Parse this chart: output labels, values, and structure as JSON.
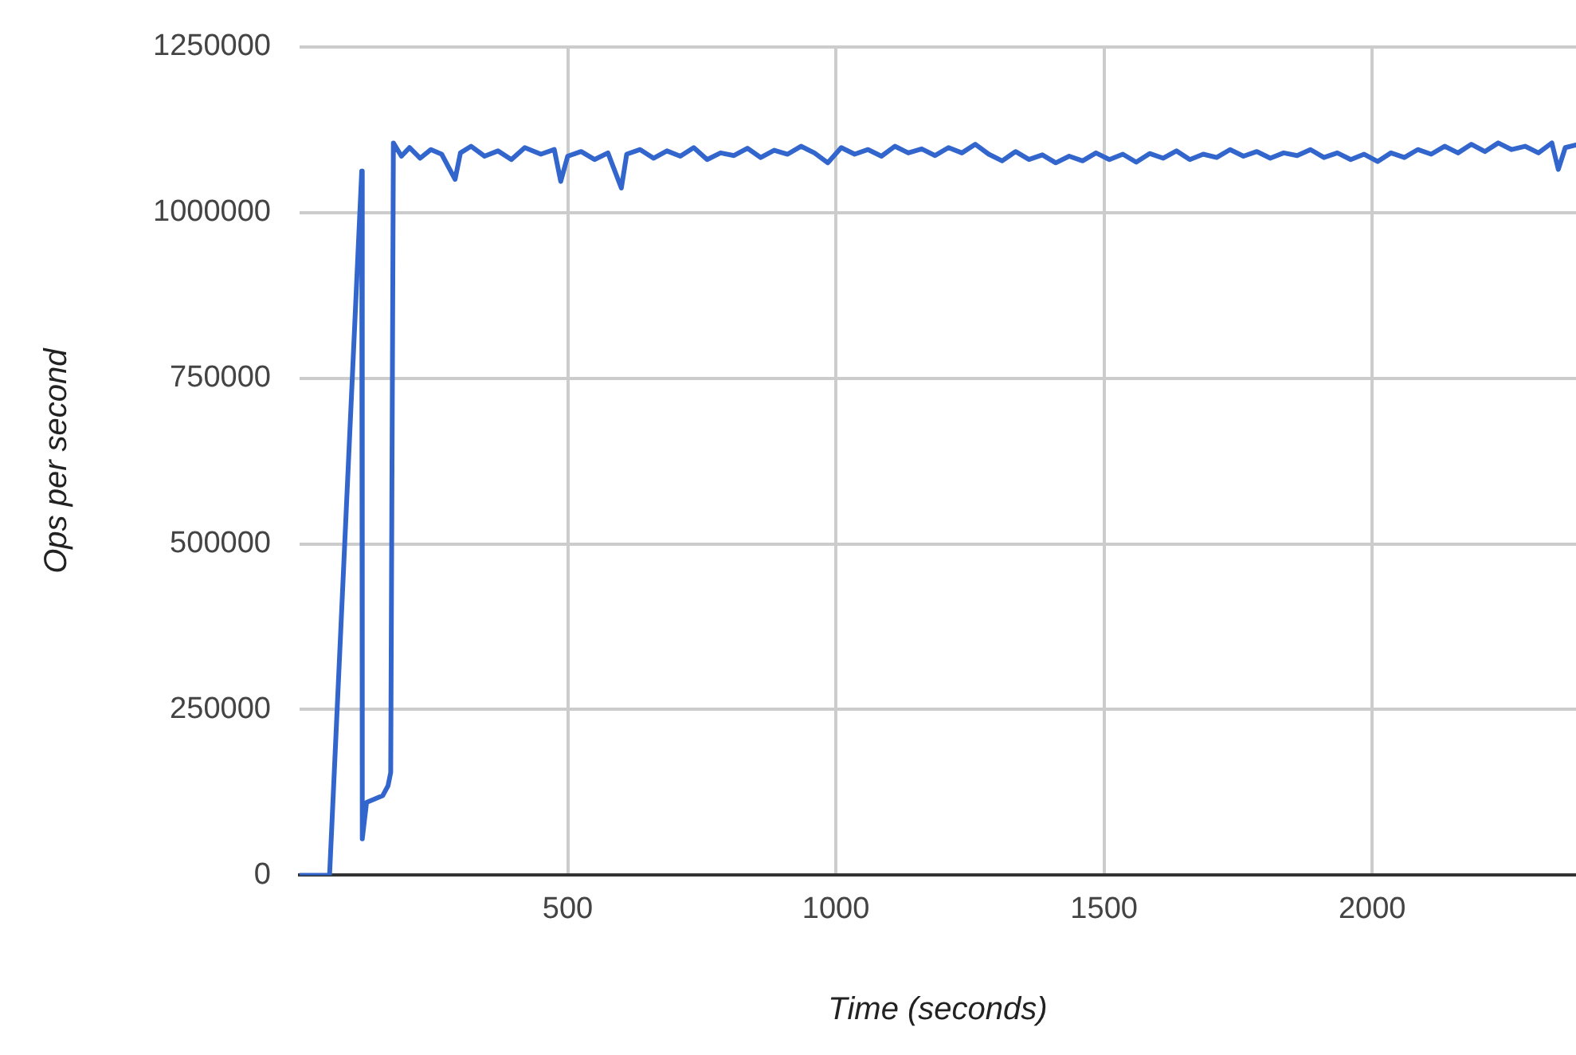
{
  "chart_data": {
    "type": "line",
    "xlabel": "Time (seconds)",
    "ylabel": "Ops per second",
    "xlim": [
      0,
      2380
    ],
    "xticks": [
      500,
      1000,
      1500,
      2000
    ],
    "ylim": [
      0,
      1250000
    ],
    "yticks": [
      0,
      250000,
      500000,
      750000,
      1000000,
      1250000
    ],
    "grid": true,
    "legend": false,
    "marker": "none",
    "line_style": "solid",
    "series": [
      {
        "color": "#3366cc",
        "x": [
          0,
          56,
          116,
          117,
          125,
          140,
          155,
          165,
          170,
          175,
          190,
          205,
          225,
          245,
          265,
          290,
          300,
          320,
          345,
          370,
          395,
          420,
          450,
          475,
          487,
          500,
          525,
          550,
          575,
          600,
          610,
          635,
          660,
          685,
          710,
          735,
          760,
          785,
          810,
          835,
          860,
          885,
          910,
          935,
          960,
          985,
          1010,
          1035,
          1060,
          1085,
          1110,
          1135,
          1160,
          1185,
          1210,
          1235,
          1260,
          1285,
          1310,
          1335,
          1360,
          1385,
          1410,
          1435,
          1460,
          1485,
          1510,
          1535,
          1560,
          1585,
          1610,
          1635,
          1660,
          1685,
          1710,
          1735,
          1760,
          1785,
          1810,
          1835,
          1860,
          1885,
          1910,
          1935,
          1960,
          1985,
          2010,
          2035,
          2060,
          2085,
          2110,
          2135,
          2160,
          2185,
          2210,
          2235,
          2260,
          2285,
          2310,
          2335,
          2347,
          2360,
          2380
        ],
        "values": [
          0,
          0,
          1062500,
          55000,
          110000,
          115000,
          120000,
          135000,
          155000,
          1105000,
          1085000,
          1098000,
          1082000,
          1095000,
          1088000,
          1050000,
          1090000,
          1100000,
          1085000,
          1093000,
          1080000,
          1098000,
          1088000,
          1095000,
          1047000,
          1085000,
          1092000,
          1080000,
          1090000,
          1037000,
          1088000,
          1095000,
          1082000,
          1093000,
          1085000,
          1098000,
          1080000,
          1090000,
          1086000,
          1097000,
          1083000,
          1094000,
          1088000,
          1100000,
          1090000,
          1075000,
          1098000,
          1088000,
          1095000,
          1085000,
          1100000,
          1090000,
          1096000,
          1086000,
          1098000,
          1090000,
          1103000,
          1088000,
          1078000,
          1092000,
          1080000,
          1087000,
          1075000,
          1085000,
          1078000,
          1090000,
          1080000,
          1088000,
          1076000,
          1089000,
          1082000,
          1093000,
          1080000,
          1088000,
          1083000,
          1095000,
          1085000,
          1092000,
          1082000,
          1090000,
          1086000,
          1095000,
          1083000,
          1090000,
          1080000,
          1088000,
          1077000,
          1090000,
          1083000,
          1095000,
          1088000,
          1100000,
          1090000,
          1103000,
          1092000,
          1105000,
          1095000,
          1100000,
          1090000,
          1105000,
          1065000,
          1098000,
          1102000
        ]
      }
    ]
  }
}
